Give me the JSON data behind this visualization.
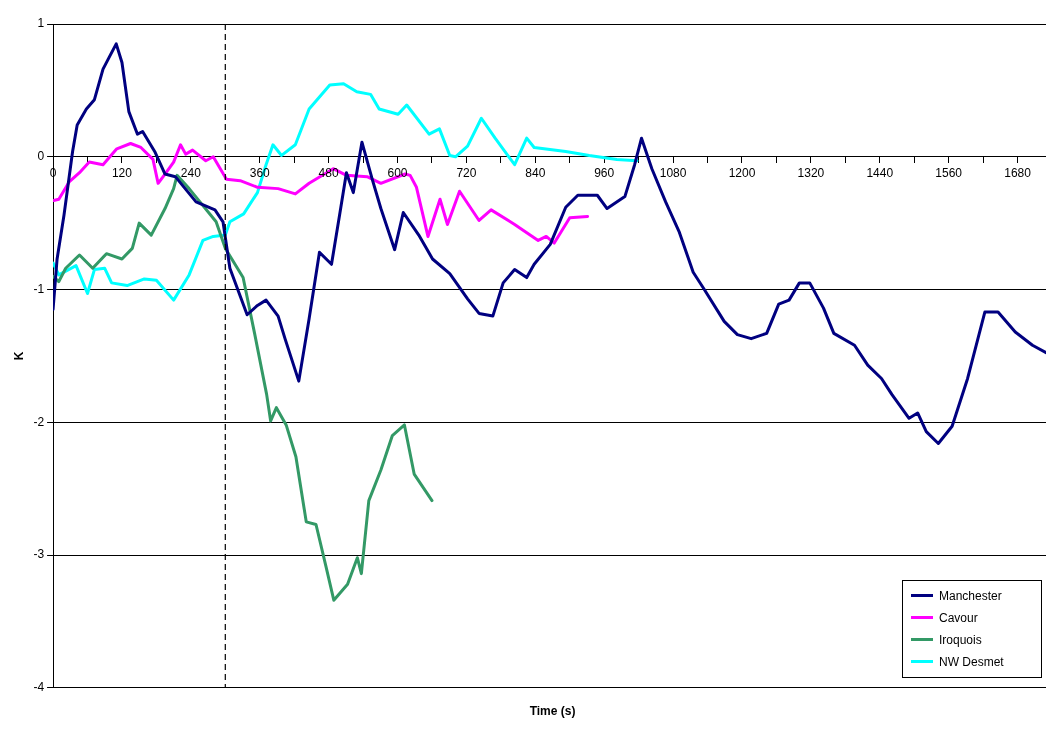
{
  "chart_data": {
    "type": "line",
    "xlabel": "Time (s)",
    "ylabel": "K",
    "xlim": [
      0,
      1740
    ],
    "ylim": [
      -4,
      1
    ],
    "xticks": [
      0,
      {
        "value": 60,
        "label": null
      },
      120,
      {
        "value": 180,
        "label": null
      },
      240,
      {
        "value": 300,
        "label": null
      },
      360,
      {
        "value": 420,
        "label": null
      },
      480,
      {
        "value": 540,
        "label": null
      },
      600,
      {
        "value": 660,
        "label": null
      },
      720,
      {
        "value": 780,
        "label": null
      },
      840,
      {
        "value": 900,
        "label": null
      },
      960,
      {
        "value": 1020,
        "label": null
      },
      1080,
      {
        "value": 1140,
        "label": null
      },
      1200,
      {
        "value": 1260,
        "label": null
      },
      1320,
      {
        "value": 1380,
        "label": null
      },
      1440,
      {
        "value": 1500,
        "label": null
      },
      1560,
      {
        "value": 1620,
        "label": null
      },
      1680
    ],
    "yticks": [
      -4,
      -3,
      -2,
      -1,
      0,
      1
    ],
    "grid": "y",
    "legend": "bottom right",
    "marker": "none",
    "line_style": "solid",
    "ref_lines": [
      {
        "axis": "x",
        "value": 300,
        "color": "#000000",
        "line_style": "dashed"
      }
    ],
    "series": [
      {
        "name": "Manchester",
        "color": "#000080",
        "x": [
          0,
          7,
          19,
          34,
          42,
          58,
          72,
          87,
          99,
          110,
          120,
          132,
          147,
          156,
          177,
          195,
          213,
          249,
          282,
          296,
          308,
          338,
          356,
          371,
          392,
          404,
          428,
          446,
          464,
          485,
          499,
          511,
          523,
          538,
          556,
          571,
          595,
          610,
          637,
          661,
          691,
          722,
          742,
          766,
          784,
          804,
          825,
          838,
          866,
          893,
          914,
          948,
          965,
          996,
          1013,
          1025,
          1043,
          1067,
          1091,
          1115,
          1133,
          1169,
          1192,
          1216,
          1243,
          1264,
          1282,
          1300,
          1318,
          1342,
          1360,
          1396,
          1419,
          1443,
          1461,
          1491,
          1506,
          1521,
          1542,
          1566,
          1593,
          1623,
          1646,
          1676,
          1706,
          1736
        ],
        "values": [
          -1.15,
          -0.77,
          -0.44,
          0.04,
          0.24,
          0.36,
          0.43,
          0.66,
          0.76,
          0.85,
          0.71,
          0.34,
          0.17,
          0.19,
          0.04,
          -0.13,
          -0.15,
          -0.34,
          -0.4,
          -0.49,
          -0.84,
          -1.19,
          -1.12,
          -1.08,
          -1.2,
          -1.37,
          -1.69,
          -1.22,
          -0.72,
          -0.81,
          -0.44,
          -0.12,
          -0.27,
          0.11,
          -0.17,
          -0.39,
          -0.7,
          -0.42,
          -0.59,
          -0.77,
          -0.88,
          -1.07,
          -1.18,
          -1.2,
          -0.95,
          -0.85,
          -0.91,
          -0.81,
          -0.66,
          -0.38,
          -0.29,
          -0.29,
          -0.39,
          -0.3,
          -0.06,
          0.14,
          -0.09,
          -0.34,
          -0.57,
          -0.87,
          -0.99,
          -1.24,
          -1.34,
          -1.37,
          -1.33,
          -1.11,
          -1.08,
          -0.95,
          -0.95,
          -1.14,
          -1.33,
          -1.42,
          -1.57,
          -1.67,
          -1.79,
          -1.97,
          -1.93,
          -2.07,
          -2.16,
          -2.03,
          -1.67,
          -1.17,
          -1.17,
          -1.32,
          -1.42,
          -1.49
        ]
      },
      {
        "name": "Cavour",
        "color": "#ff00ff",
        "x": [
          1,
          10,
          28,
          46,
          63,
          87,
          111,
          135,
          153,
          174,
          183,
          195,
          210,
          222,
          231,
          243,
          266,
          279,
          302,
          326,
          356,
          392,
          422,
          446,
          488,
          511,
          547,
          571,
          613,
          622,
          633,
          653,
          674,
          687,
          708,
          742,
          763,
          804,
          845,
          859,
          873,
          900,
          931
        ],
        "values": [
          -0.33,
          -0.32,
          -0.19,
          -0.12,
          -0.04,
          -0.06,
          0.06,
          0.1,
          0.07,
          -0.02,
          -0.2,
          -0.13,
          -0.04,
          0.09,
          0.02,
          0.05,
          -0.03,
          0.0,
          -0.17,
          -0.18,
          -0.23,
          -0.24,
          -0.28,
          -0.2,
          -0.09,
          -0.14,
          -0.15,
          -0.2,
          -0.13,
          -0.14,
          -0.23,
          -0.6,
          -0.32,
          -0.51,
          -0.26,
          -0.48,
          -0.4,
          -0.51,
          -0.63,
          -0.6,
          -0.65,
          -0.46,
          -0.45
        ]
      },
      {
        "name": "Iroquois",
        "color": "#339966",
        "x": [
          0,
          10,
          22,
          46,
          69,
          93,
          120,
          138,
          150,
          171,
          195,
          210,
          216,
          237,
          284,
          300,
          331,
          351,
          372,
          379,
          389,
          406,
          423,
          441,
          458,
          475,
          489,
          513,
          530,
          537,
          550,
          571,
          591,
          612,
          629,
          660
        ],
        "values": [
          -0.9,
          -0.94,
          -0.84,
          -0.74,
          -0.84,
          -0.73,
          -0.77,
          -0.69,
          -0.5,
          -0.59,
          -0.39,
          -0.24,
          -0.14,
          -0.24,
          -0.49,
          -0.69,
          -0.91,
          -1.33,
          -1.79,
          -1.99,
          -1.89,
          -2.02,
          -2.26,
          -2.75,
          -2.77,
          -3.08,
          -3.34,
          -3.22,
          -3.02,
          -3.14,
          -2.59,
          -2.36,
          -2.1,
          -2.02,
          -2.39,
          -2.59
        ]
      },
      {
        "name": "NW Desmet",
        "color": "#00ffff",
        "x": [
          0,
          10,
          40,
          60,
          72,
          90,
          102,
          129,
          159,
          180,
          210,
          237,
          261,
          279,
          300,
          308,
          332,
          356,
          371,
          383,
          398,
          422,
          446,
          482,
          506,
          529,
          553,
          568,
          601,
          616,
          655,
          673,
          691,
          701,
          722,
          746,
          770,
          804,
          825,
          838,
          893,
          934,
          982,
          1017
        ],
        "values": [
          -0.8,
          -0.89,
          -0.82,
          -1.03,
          -0.85,
          -0.84,
          -0.95,
          -0.97,
          -0.92,
          -0.93,
          -1.08,
          -0.89,
          -0.63,
          -0.6,
          -0.59,
          -0.49,
          -0.43,
          -0.27,
          -0.06,
          0.09,
          0.01,
          0.09,
          0.36,
          0.54,
          0.55,
          0.49,
          0.47,
          0.36,
          0.32,
          0.39,
          0.17,
          0.21,
          0.01,
          0.0,
          0.08,
          0.29,
          0.14,
          -0.06,
          0.14,
          0.07,
          0.04,
          0.01,
          -0.02,
          -0.03
        ]
      }
    ]
  }
}
